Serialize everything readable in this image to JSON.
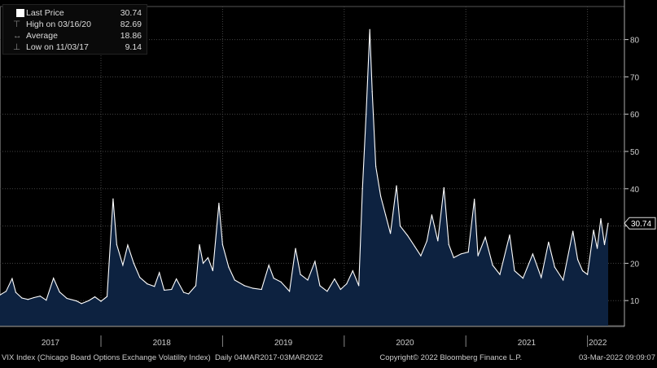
{
  "chart_data": {
    "type": "area",
    "title": "VIX Index (Chicago Board Options Exchange Volatility Index)",
    "frequency": "Daily",
    "range": "04MAR2017-03MAR2022",
    "copyright": "Copyright© 2022 Bloomberg Finance L.P.",
    "timestamp": "03-Mar-2022 09:09:07",
    "ylim": [
      3,
      88
    ],
    "xlim": [
      2017.17,
      2022.17
    ],
    "y_ticks": [
      10,
      20,
      30,
      40,
      50,
      60,
      70,
      80
    ],
    "x_ticks": [
      "2017",
      "2018",
      "2019",
      "2020",
      "2021",
      "2022"
    ],
    "grid": true,
    "colors": {
      "line": "#ffffff",
      "fill": "#0d2240",
      "background": "#000000"
    },
    "legend": {
      "placement": "top-left",
      "last_price": {
        "label": "Last Price",
        "value": "30.74"
      },
      "high": {
        "label": "High on 03/16/20",
        "value": "82.69"
      },
      "average": {
        "label": "Average",
        "value": "18.86"
      },
      "low": {
        "label": "Low on 11/03/17",
        "value": "9.14"
      }
    },
    "last_value_label": "30.74",
    "series": [
      {
        "name": "Last Price",
        "points": [
          [
            2017.17,
            11.5
          ],
          [
            2017.22,
            12.5
          ],
          [
            2017.27,
            15.9
          ],
          [
            2017.3,
            12.2
          ],
          [
            2017.35,
            10.7
          ],
          [
            2017.4,
            10.3
          ],
          [
            2017.45,
            10.8
          ],
          [
            2017.5,
            11.2
          ],
          [
            2017.55,
            10.1
          ],
          [
            2017.61,
            16.0
          ],
          [
            2017.66,
            12.3
          ],
          [
            2017.72,
            10.6
          ],
          [
            2017.8,
            9.9
          ],
          [
            2017.84,
            9.2
          ],
          [
            2017.9,
            10.0
          ],
          [
            2017.95,
            11.0
          ],
          [
            2018.0,
            9.8
          ],
          [
            2018.05,
            11.1
          ],
          [
            2018.1,
            37.3
          ],
          [
            2018.13,
            25.0
          ],
          [
            2018.18,
            19.5
          ],
          [
            2018.22,
            24.9
          ],
          [
            2018.27,
            20.0
          ],
          [
            2018.32,
            16.2
          ],
          [
            2018.38,
            14.5
          ],
          [
            2018.44,
            13.8
          ],
          [
            2018.48,
            17.5
          ],
          [
            2018.52,
            12.8
          ],
          [
            2018.58,
            13.0
          ],
          [
            2018.62,
            15.8
          ],
          [
            2018.68,
            12.2
          ],
          [
            2018.72,
            11.8
          ],
          [
            2018.78,
            14.0
          ],
          [
            2018.81,
            25.0
          ],
          [
            2018.84,
            20.0
          ],
          [
            2018.88,
            21.5
          ],
          [
            2018.92,
            18.0
          ],
          [
            2018.97,
            36.1
          ],
          [
            2019.0,
            25.0
          ],
          [
            2019.05,
            19.0
          ],
          [
            2019.1,
            15.5
          ],
          [
            2019.18,
            14.0
          ],
          [
            2019.25,
            13.3
          ],
          [
            2019.32,
            13.0
          ],
          [
            2019.38,
            19.5
          ],
          [
            2019.42,
            16.0
          ],
          [
            2019.48,
            15.0
          ],
          [
            2019.55,
            12.5
          ],
          [
            2019.6,
            24.0
          ],
          [
            2019.64,
            17.0
          ],
          [
            2019.7,
            15.5
          ],
          [
            2019.76,
            20.5
          ],
          [
            2019.8,
            14.0
          ],
          [
            2019.86,
            12.5
          ],
          [
            2019.92,
            15.8
          ],
          [
            2019.97,
            13.0
          ],
          [
            2020.02,
            14.5
          ],
          [
            2020.07,
            18.0
          ],
          [
            2020.12,
            14.0
          ],
          [
            2020.15,
            40.0
          ],
          [
            2020.18,
            60.0
          ],
          [
            2020.21,
            82.69
          ],
          [
            2020.23,
            66.0
          ],
          [
            2020.26,
            46.0
          ],
          [
            2020.3,
            38.0
          ],
          [
            2020.34,
            33.0
          ],
          [
            2020.38,
            28.0
          ],
          [
            2020.43,
            40.8
          ],
          [
            2020.46,
            30.0
          ],
          [
            2020.52,
            27.5
          ],
          [
            2020.58,
            24.5
          ],
          [
            2020.63,
            22.0
          ],
          [
            2020.68,
            26.0
          ],
          [
            2020.72,
            33.0
          ],
          [
            2020.77,
            26.0
          ],
          [
            2020.82,
            40.3
          ],
          [
            2020.86,
            25.0
          ],
          [
            2020.9,
            21.5
          ],
          [
            2020.96,
            22.5
          ],
          [
            2021.02,
            23.0
          ],
          [
            2021.07,
            37.2
          ],
          [
            2021.1,
            22.0
          ],
          [
            2021.16,
            27.0
          ],
          [
            2021.22,
            19.5
          ],
          [
            2021.28,
            17.0
          ],
          [
            2021.36,
            27.6
          ],
          [
            2021.4,
            18.0
          ],
          [
            2021.47,
            16.0
          ],
          [
            2021.55,
            22.5
          ],
          [
            2021.62,
            16.2
          ],
          [
            2021.68,
            25.7
          ],
          [
            2021.73,
            19.0
          ],
          [
            2021.8,
            15.5
          ],
          [
            2021.88,
            28.6
          ],
          [
            2021.92,
            21.0
          ],
          [
            2021.96,
            18.0
          ],
          [
            2022.0,
            17.0
          ],
          [
            2022.05,
            28.9
          ],
          [
            2022.08,
            24.0
          ],
          [
            2022.11,
            32.0
          ],
          [
            2022.14,
            25.0
          ],
          [
            2022.17,
            30.74
          ]
        ]
      }
    ]
  }
}
